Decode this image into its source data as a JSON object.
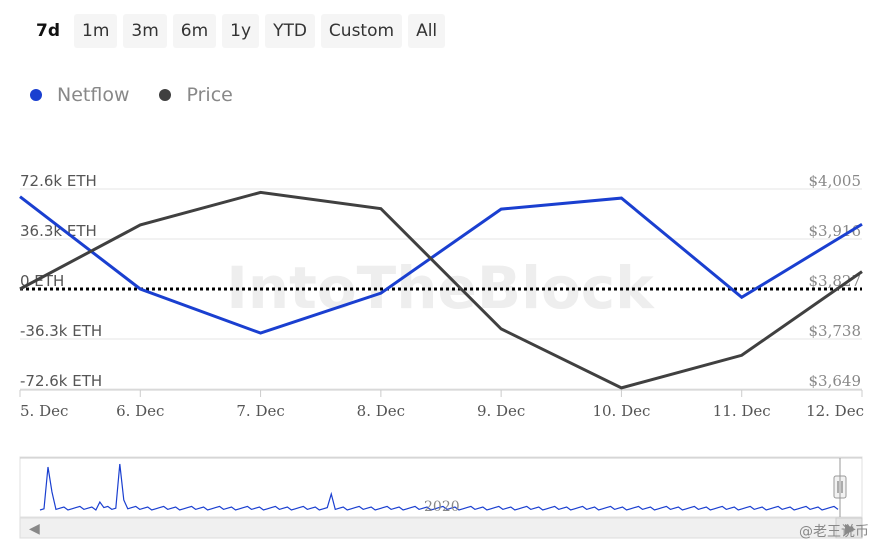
{
  "range_buttons": [
    "7d",
    "1m",
    "3m",
    "6m",
    "1y",
    "YTD",
    "Custom",
    "All"
  ],
  "active_range": "7d",
  "legend": {
    "netflow": {
      "label": "Netflow",
      "color": "#1a3fd0"
    },
    "price": {
      "label": "Price",
      "color": "#404040"
    }
  },
  "watermark": "IntoTheBlock",
  "navigator": {
    "label": "2020",
    "left_arrow": "◀",
    "right_arrow": "▶"
  },
  "credit": "@老王说币",
  "chart_data": {
    "type": "line",
    "categories": [
      "5. Dec",
      "6. Dec",
      "7. Dec",
      "8. Dec",
      "9. Dec",
      "10. Dec",
      "11. Dec",
      "12. Dec"
    ],
    "y_left": {
      "ticks": [
        "72.6k ETH",
        "36.3k ETH",
        "0 ETH",
        "-36.3k ETH",
        "-72.6k ETH"
      ],
      "range": [
        -72600,
        72600
      ]
    },
    "y_right": {
      "ticks": [
        "$4,005",
        "$3,916",
        "$3,827",
        "$3,738",
        "$3,649"
      ],
      "range": [
        3649,
        4005
      ]
    },
    "series": [
      {
        "name": "Netflow",
        "axis": "left",
        "color": "#1a3fd0",
        "values": [
          67000,
          0,
          -32000,
          -3000,
          58000,
          66000,
          -6000,
          47000
        ]
      },
      {
        "name": "Price",
        "axis": "right",
        "color": "#404040",
        "values": [
          3827,
          3941,
          3999,
          3970,
          3756,
          3651,
          3709,
          3858
        ]
      }
    ],
    "zero_line": true
  }
}
